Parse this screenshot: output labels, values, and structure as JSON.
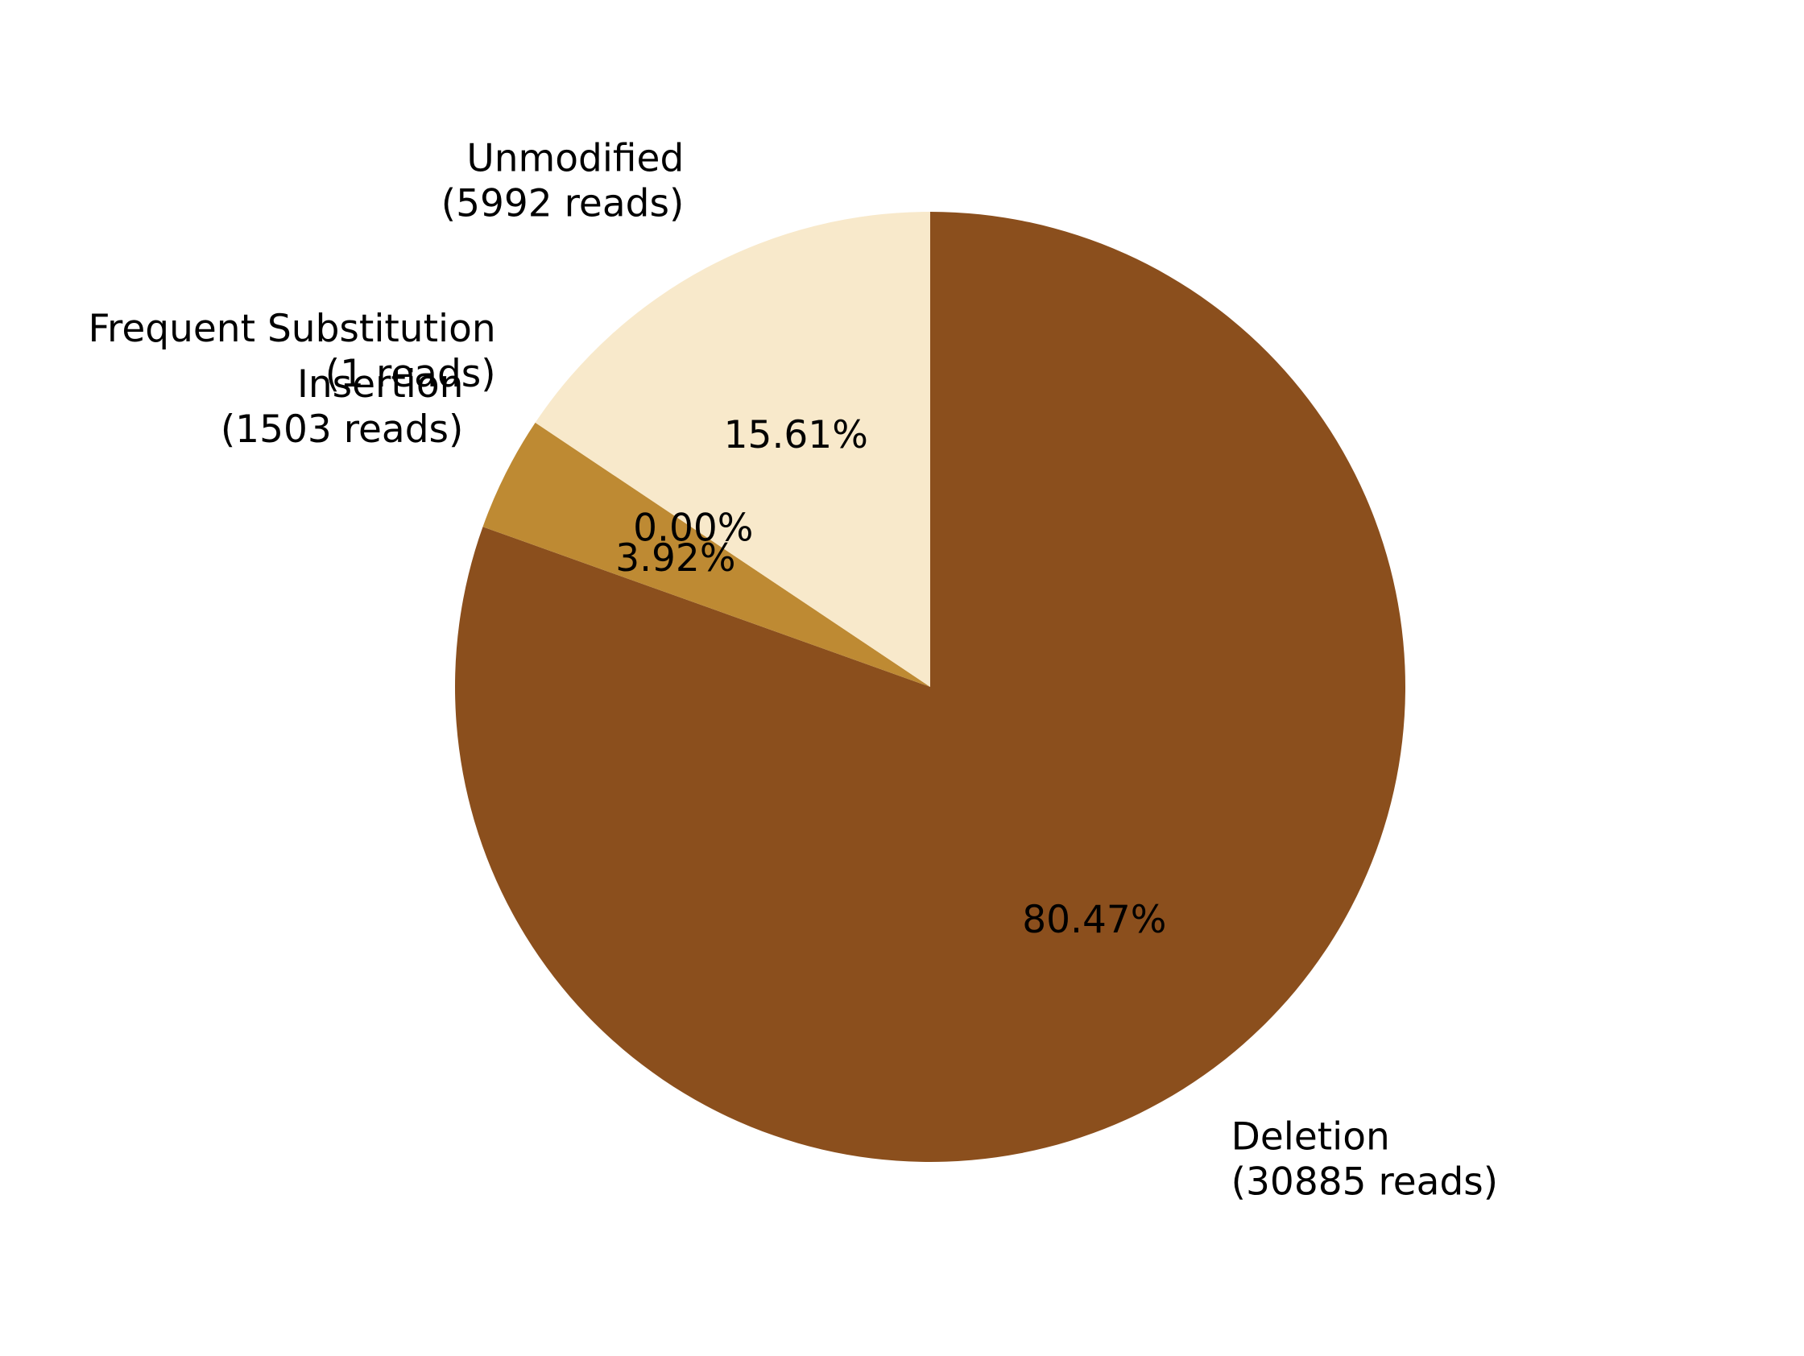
{
  "chart_data": {
    "type": "pie",
    "start_angle_deg": 90,
    "direction": "clockwise",
    "slices": [
      {
        "name": "Deletion",
        "reads": 30885,
        "reads_text": "(30885 reads)",
        "percent": 80.47,
        "percent_text": "80.47%",
        "color": "#8B4F1D"
      },
      {
        "name": "Insertion",
        "reads": 1503,
        "reads_text": "(1503 reads)",
        "percent": 3.92,
        "percent_text": "3.92%",
        "color": "#BE8A33"
      },
      {
        "name": "Frequent Substitution",
        "reads": 1,
        "reads_text": "(1 reads)",
        "percent": 0.0,
        "percent_text": "0.00%",
        "color": "#F6DCB6"
      },
      {
        "name": "Unmodified",
        "reads": 5992,
        "reads_text": "(5992 reads)",
        "percent": 15.61,
        "percent_text": "15.61%",
        "color": "#F8E9CB"
      }
    ]
  }
}
